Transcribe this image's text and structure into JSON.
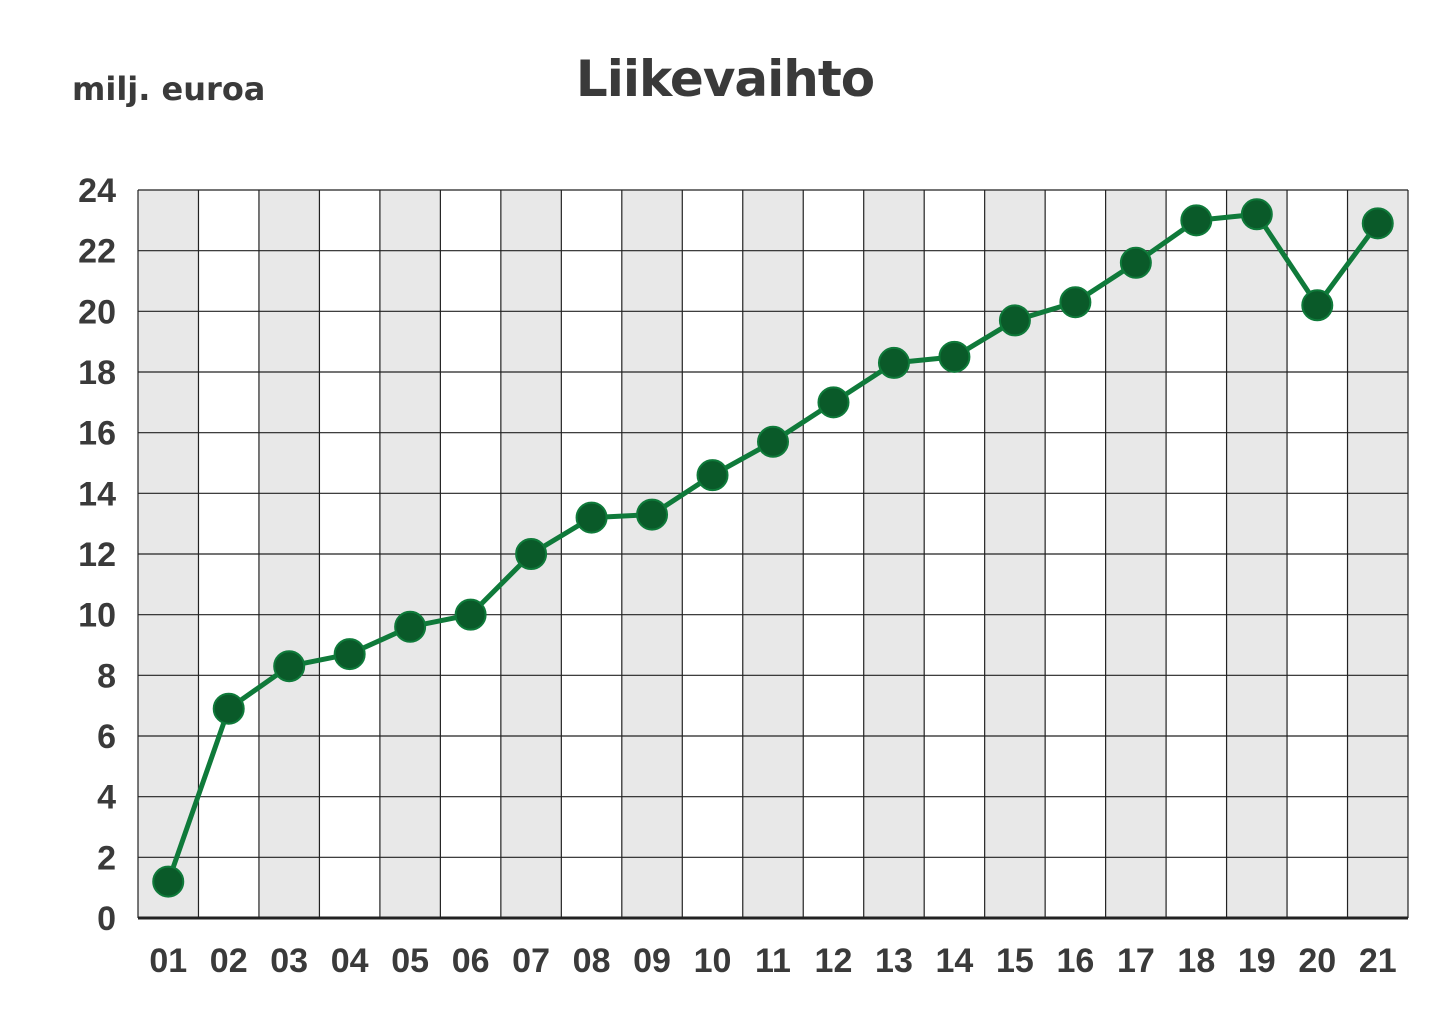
{
  "chart_data": {
    "type": "line",
    "title": "Liikevaihto",
    "ylabel": "milj. euroa",
    "xlabel": "",
    "categories": [
      "01",
      "02",
      "03",
      "04",
      "05",
      "06",
      "07",
      "08",
      "09",
      "10",
      "11",
      "12",
      "13",
      "14",
      "15",
      "16",
      "17",
      "18",
      "19",
      "20",
      "21"
    ],
    "values": [
      1.2,
      6.9,
      8.3,
      8.7,
      9.6,
      10.0,
      12.0,
      13.2,
      13.3,
      14.6,
      15.7,
      17.0,
      18.3,
      18.5,
      19.7,
      20.3,
      21.6,
      23.0,
      23.2,
      20.2,
      22.9
    ],
    "ylim": [
      0,
      24
    ],
    "yticks": [
      "0",
      "2",
      "4",
      "6",
      "8",
      "10",
      "12",
      "14",
      "16",
      "18",
      "20",
      "22",
      "24"
    ],
    "grid": true,
    "colors": {
      "line": "#0f7a3a",
      "marker": "#0a5a29",
      "band": "#e8e8e8",
      "grid": "#222222",
      "text": "#3a3a3a"
    }
  }
}
